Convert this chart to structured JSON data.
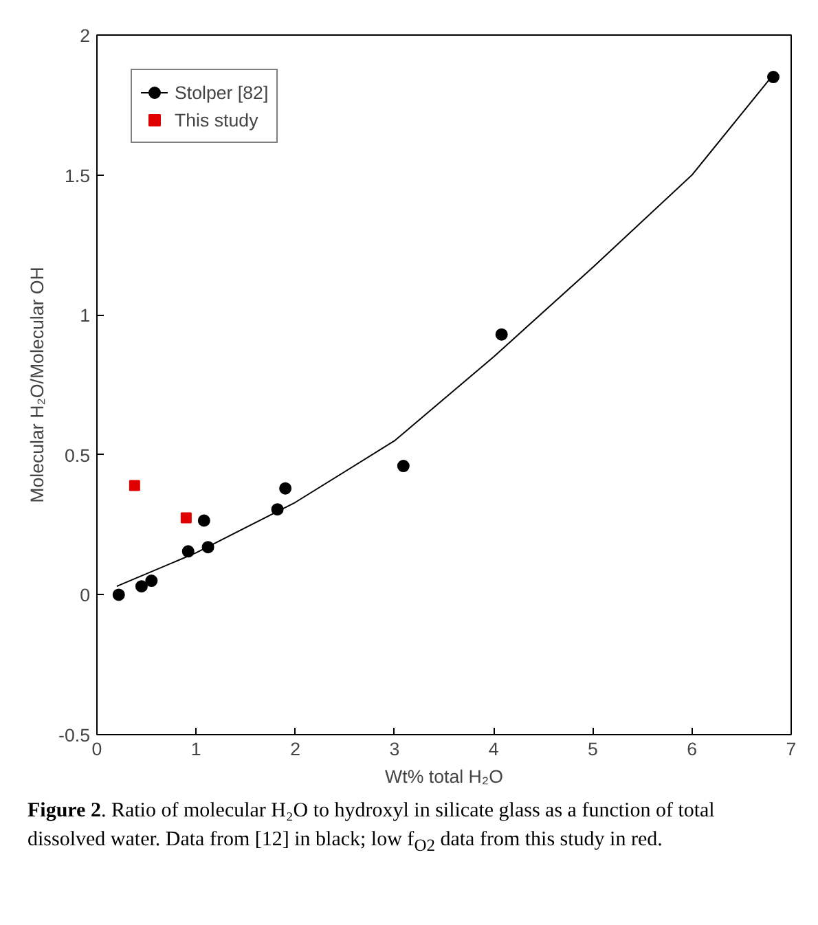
{
  "chart_data": {
    "type": "scatter",
    "xlabel": "Wt% total H₂O",
    "ylabel": "Molecular H₂O/Molecular OH",
    "xlim": [
      0,
      7
    ],
    "xticks": [
      0,
      1,
      2,
      3,
      4,
      5,
      6,
      7
    ],
    "ylim": [
      -0.5,
      2
    ],
    "yticks": [
      -0.5,
      0,
      0.5,
      1,
      1.5,
      2
    ],
    "grid": false,
    "legend": "top left",
    "series": [
      {
        "name": "Stolper [82]",
        "color": "#000000",
        "marker": "circle",
        "x": [
          0.22,
          0.45,
          0.55,
          0.92,
          1.08,
          1.12,
          1.82,
          1.9,
          3.09,
          4.08,
          6.82
        ],
        "values": [
          0.0,
          0.03,
          0.05,
          0.155,
          0.265,
          0.17,
          0.305,
          0.38,
          0.46,
          0.93,
          1.85
        ]
      },
      {
        "type": "line",
        "color": "#000000",
        "marker": "none",
        "x": [
          0.2,
          1,
          2,
          3,
          4,
          5,
          6,
          6.8
        ],
        "values": [
          0.03,
          0.15,
          0.33,
          0.55,
          0.85,
          1.17,
          1.5,
          1.85
        ]
      },
      {
        "name": "This study",
        "color": "#e00000",
        "marker": "square",
        "x": [
          0.38,
          0.9
        ],
        "values": [
          0.39,
          0.275
        ]
      }
    ],
    "annotations": [
      "Figure 2. Ratio of molecular H₂O to hydroxyl in silicate glass as a function of total dissolved water. Data from [12] in black; low f$_{O2}$ data from this study in red."
    ]
  }
}
